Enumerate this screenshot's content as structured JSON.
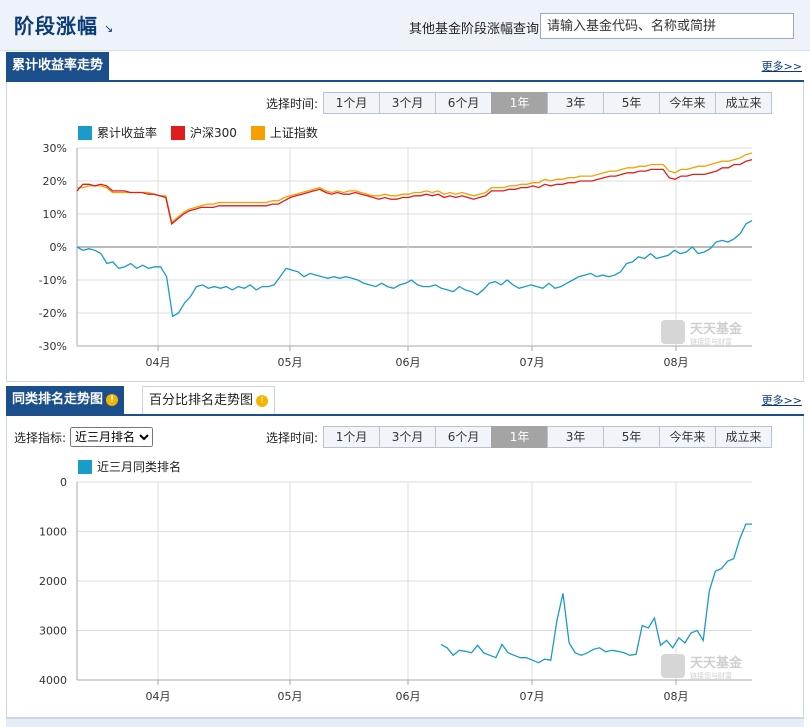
{
  "header": {
    "title": "阶段涨幅",
    "title_arrow": "↘",
    "query_label": "其他基金阶段涨幅查询:",
    "query_placeholder": "请输入基金代码、名称或简拼"
  },
  "section1": {
    "tab": "累计收益率走势",
    "more": "更多>>"
  },
  "section2": {
    "tab": "同类排名走势图",
    "tab2": "百分比排名走势图",
    "more": "更多>>",
    "indicator_label": "选择指标:",
    "indicator_value": "近三月排名"
  },
  "range": {
    "label": "选择时间:",
    "options": [
      "1个月",
      "3个月",
      "6个月",
      "1年",
      "3年",
      "5年",
      "今年来",
      "成立来"
    ],
    "active": "1年"
  },
  "watermark": {
    "text": "天天基金",
    "sub": "链接您与财富"
  },
  "colors": {
    "fund": "#1a9bc8",
    "hs300": "#e01c1c",
    "sh": "#f5a000",
    "header_blue": "#1b4f8b"
  },
  "chart_data": [
    {
      "type": "line",
      "series": [
        {
          "name": "累计收益率",
          "values": [
            0,
            -1,
            -0.5,
            -1,
            -2,
            -5,
            -4.5,
            -6.5,
            -6,
            -5,
            -6.5,
            -5.5,
            -6.5,
            -6,
            -6,
            -9,
            -21,
            -20,
            -17,
            -15,
            -12,
            -11.5,
            -12.5,
            -12,
            -12.5,
            -12,
            -13,
            -12,
            -12.5,
            -11.5,
            -13,
            -12,
            -12,
            -11.5,
            -9,
            -6.5,
            -7,
            -7.5,
            -9,
            -8,
            -8.5,
            -9,
            -9.5,
            -9,
            -9.5,
            -9,
            -9.5,
            -10,
            -11,
            -11.5,
            -12,
            -11,
            -12,
            -12.5,
            -11.5,
            -11,
            -10,
            -11.5,
            -12,
            -12,
            -11.5,
            -12.5,
            -13,
            -13.5,
            -12,
            -13,
            -13.5,
            -14.5,
            -13,
            -11,
            -10.5,
            -11.5,
            -10,
            -11.5,
            -12.5,
            -12,
            -11.5,
            -12,
            -12.5,
            -11,
            -12.5,
            -12,
            -11,
            -10,
            -9,
            -8.5,
            -8,
            -9,
            -8.5,
            -9,
            -8.5,
            -7.5,
            -5,
            -4.5,
            -3,
            -3.5,
            -2,
            -3.5,
            -3,
            -2.5,
            -1,
            -2,
            -1.5,
            0,
            -2,
            -1.5,
            -0.5,
            1.5,
            2,
            1.5,
            2.5,
            4,
            7,
            8
          ]
        },
        {
          "name": "沪深300",
          "values": [
            17,
            19,
            19,
            18.5,
            19,
            18.5,
            17,
            17,
            17,
            16.5,
            16.5,
            16.5,
            16,
            16,
            15.5,
            15,
            7,
            8.5,
            10,
            11,
            11.5,
            12,
            12,
            12,
            12.5,
            12.5,
            12.5,
            12.5,
            12.5,
            12.5,
            12.5,
            12.5,
            12.5,
            13,
            13,
            14,
            15,
            15.5,
            16,
            16.5,
            17,
            17.5,
            16.5,
            16,
            16.5,
            16,
            16,
            16.5,
            16,
            15.5,
            15,
            14.5,
            15,
            14.5,
            14.5,
            15,
            15,
            15.5,
            15.5,
            16,
            15.5,
            16,
            15,
            15.5,
            15,
            15.5,
            15,
            14.5,
            15,
            15.5,
            17,
            17,
            17,
            17.5,
            17.5,
            18,
            18,
            18.5,
            18,
            19,
            18.5,
            19,
            19,
            19.5,
            19.5,
            20,
            20,
            20,
            20.5,
            21,
            21.5,
            21.5,
            22,
            22.5,
            22.5,
            23,
            23,
            23.5,
            23.5,
            23.5,
            21,
            20.5,
            21.5,
            21.5,
            22,
            22,
            22,
            22.5,
            23,
            24,
            24,
            25,
            25,
            26,
            26.5
          ]
        },
        {
          "name": "上证指数",
          "values": [
            18,
            18,
            18.5,
            18.5,
            18.5,
            18,
            16.5,
            16.5,
            16.5,
            16.5,
            16.5,
            16.5,
            16.5,
            16,
            15.5,
            15.5,
            7.5,
            9,
            10.5,
            11.5,
            12,
            12.5,
            13,
            13,
            13.5,
            13.5,
            13.5,
            13.5,
            13.5,
            13.5,
            13.5,
            13.5,
            13.5,
            14,
            14,
            15,
            15.5,
            16,
            16.5,
            17,
            17.5,
            18,
            17,
            16.5,
            17,
            16.5,
            17,
            17,
            16.5,
            16,
            15.5,
            15.5,
            16,
            15.5,
            15.5,
            16,
            16,
            16.5,
            16.5,
            17,
            16.5,
            17,
            16,
            16.5,
            16,
            16.5,
            16,
            15.5,
            16,
            16.5,
            18,
            18,
            18,
            18.5,
            18.5,
            19,
            19,
            19.5,
            19.5,
            20.5,
            20,
            20.5,
            20.5,
            21,
            21,
            21.5,
            21.5,
            21.5,
            22,
            22.5,
            23,
            23,
            23.5,
            24,
            24,
            24.5,
            24.5,
            25,
            25,
            25,
            23,
            22.5,
            23.5,
            23.5,
            24,
            24.5,
            24.5,
            25,
            25.5,
            26,
            26,
            26.5,
            27,
            28,
            28.5
          ]
        }
      ],
      "x_ticks": [
        "04月",
        "05月",
        "06月",
        "07月",
        "08月"
      ],
      "y_ticks": [
        "30%",
        "20%",
        "10%",
        "0%",
        "-10%",
        "-20%",
        "-30%"
      ],
      "ylim": [
        -30,
        30
      ],
      "grid": true,
      "legend": "top-left"
    },
    {
      "type": "line",
      "series": [
        {
          "name": "近三月同类排名",
          "values": [
            3280,
            3350,
            3500,
            3400,
            3420,
            3450,
            3300,
            3450,
            3500,
            3550,
            3280,
            3450,
            3500,
            3550,
            3550,
            3600,
            3650,
            3580,
            3600,
            2800,
            2250,
            3250,
            3450,
            3500,
            3450,
            3380,
            3350,
            3430,
            3400,
            3420,
            3450,
            3500,
            3480,
            2900,
            2950,
            2750,
            3300,
            3200,
            3350,
            3150,
            3250,
            3050,
            3000,
            3200,
            2200,
            1800,
            1750,
            1600,
            1550,
            1150,
            850,
            850
          ]
        }
      ],
      "x_ticks": [
        "04月",
        "05月",
        "06月",
        "07月",
        "08月"
      ],
      "y_ticks": [
        "0",
        "1000",
        "2000",
        "3000",
        "4000"
      ],
      "ylim": [
        0,
        4000
      ],
      "y_inverted": true,
      "grid": true,
      "legend": "top-left"
    }
  ]
}
